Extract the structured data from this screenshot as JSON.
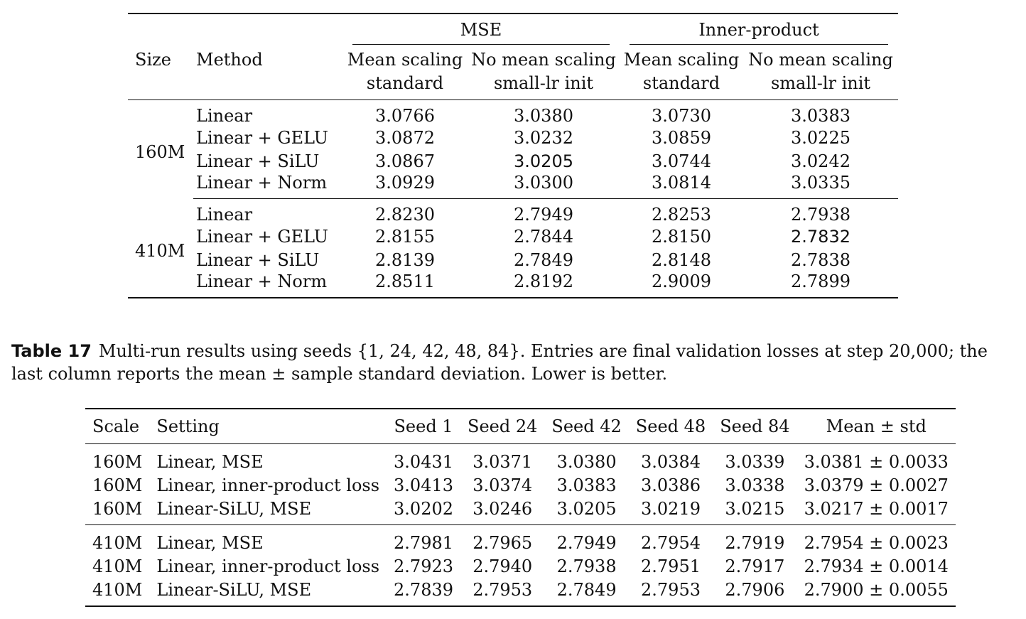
{
  "table1": {
    "col_size": "Size",
    "col_method": "Method",
    "group_mse": "MSE",
    "group_ip": "Inner-product",
    "sub": [
      {
        "line1": "Mean scaling",
        "line2": "standard"
      },
      {
        "line1": "No mean scaling",
        "line2": "small-lr init"
      },
      {
        "line1": "Mean scaling",
        "line2": "standard"
      },
      {
        "line1": "No mean scaling",
        "line2": "small-lr init"
      }
    ],
    "blocks": [
      {
        "size": "160M",
        "rows": [
          {
            "method": "Linear",
            "v": [
              "3.0766",
              "3.0380",
              "3.0730",
              "3.0383"
            ]
          },
          {
            "method": "Linear + GELU",
            "v": [
              "3.0872",
              "3.0232",
              "3.0859",
              "3.0225"
            ]
          },
          {
            "method": "Linear + SiLU",
            "v": [
              "3.0867",
              "3.0205",
              "3.0744",
              "3.0242"
            ]
          },
          {
            "method": "Linear + Norm",
            "v": [
              "3.0929",
              "3.0300",
              "3.0814",
              "3.0335"
            ]
          }
        ]
      },
      {
        "size": "410M",
        "rows": [
          {
            "method": "Linear",
            "v": [
              "2.8230",
              "2.7949",
              "2.8253",
              "2.7938"
            ]
          },
          {
            "method": "Linear + GELU",
            "v": [
              "2.8155",
              "2.7844",
              "2.8150",
              "2.7832"
            ]
          },
          {
            "method": "Linear + SiLU",
            "v": [
              "2.8139",
              "2.7849",
              "2.8148",
              "2.7838"
            ]
          },
          {
            "method": "Linear + Norm",
            "v": [
              "2.8511",
              "2.8192",
              "2.9009",
              "2.7899"
            ]
          }
        ]
      }
    ]
  },
  "caption": {
    "label": "Table 17",
    "text": "Multi-run results using seeds {1, 24, 42, 48, 84}. Entries are final validation losses at step 20,000; the last column reports the mean ± sample standard deviation. Lower is better."
  },
  "table2": {
    "headers": [
      "Scale",
      "Setting",
      "Seed 1",
      "Seed 24",
      "Seed 42",
      "Seed 48",
      "Seed 84",
      "Mean ± std"
    ],
    "rows": [
      [
        "160M",
        "Linear, MSE",
        "3.0431",
        "3.0371",
        "3.0380",
        "3.0384",
        "3.0339",
        "3.0381 ± 0.0033"
      ],
      [
        "160M",
        "Linear, inner-product loss",
        "3.0413",
        "3.0374",
        "3.0383",
        "3.0386",
        "3.0338",
        "3.0379 ± 0.0027"
      ],
      [
        "160M",
        "Linear-SiLU, MSE",
        "3.0202",
        "3.0246",
        "3.0205",
        "3.0219",
        "3.0215",
        "3.0217 ± 0.0017"
      ],
      [
        "410M",
        "Linear, MSE",
        "2.7981",
        "2.7965",
        "2.7949",
        "2.7954",
        "2.7919",
        "2.7954 ± 0.0023"
      ],
      [
        "410M",
        "Linear, inner-product loss",
        "2.7923",
        "2.7940",
        "2.7938",
        "2.7951",
        "2.7917",
        "2.7934 ± 0.0014"
      ],
      [
        "410M",
        "Linear-SiLU, MSE",
        "2.7839",
        "2.7953",
        "2.7849",
        "2.7953",
        "2.7906",
        "2.7900 ± 0.0055"
      ]
    ]
  }
}
